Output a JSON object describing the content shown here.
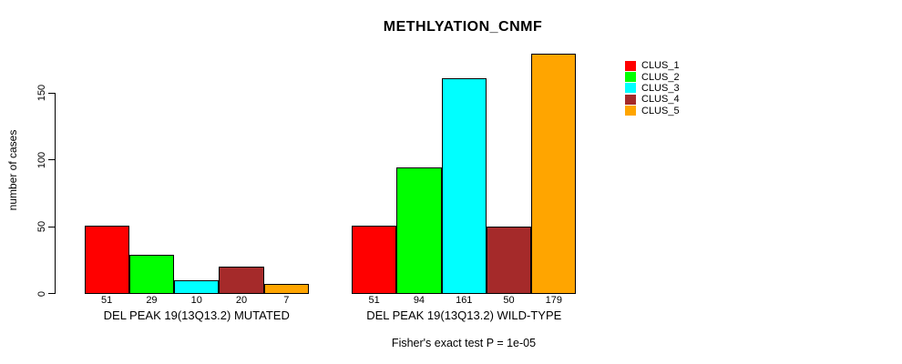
{
  "title": "METHLYATION_CNMF",
  "footer": "Fisher's exact test P = 1e-05",
  "legend": {
    "items": [
      {
        "label": "CLUS_1",
        "color": "#FF0000"
      },
      {
        "label": "CLUS_2",
        "color": "#00FF00"
      },
      {
        "label": "CLUS_3",
        "color": "#00FFFF"
      },
      {
        "label": "CLUS_4",
        "color": "#A52A2A"
      },
      {
        "label": "CLUS_5",
        "color": "#FFA500"
      }
    ]
  },
  "chart_data": {
    "type": "bar",
    "title": "METHLYATION_CNMF",
    "xlabel": "",
    "ylabel": "number of cases",
    "ylim": [
      0,
      180
    ],
    "y_ticks": [
      0,
      50,
      100,
      150
    ],
    "grid": false,
    "legend_position": "right",
    "series_names": [
      "CLUS_1",
      "CLUS_2",
      "CLUS_3",
      "CLUS_4",
      "CLUS_5"
    ],
    "series_colors": [
      "#FF0000",
      "#00FF00",
      "#00FFFF",
      "#A52A2A",
      "#FFA500"
    ],
    "groups": [
      {
        "label": "DEL PEAK 19(13Q13.2) MUTATED",
        "values": [
          51,
          29,
          10,
          20,
          7
        ]
      },
      {
        "label": "DEL PEAK 19(13Q13.2) WILD-TYPE",
        "values": [
          51,
          94,
          161,
          50,
          179
        ]
      }
    ],
    "annotation": "Fisher's exact test P = 1e-05"
  }
}
